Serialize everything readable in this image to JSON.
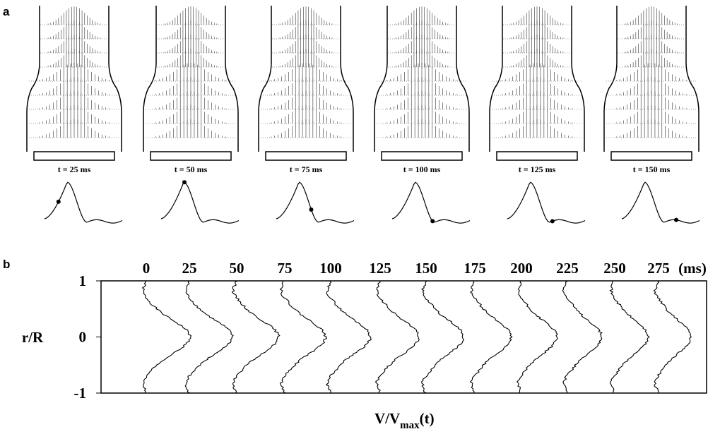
{
  "panel_a": {
    "label": "a",
    "frames": [
      {
        "label": "t = 25 ms"
      },
      {
        "label": "t = 50 ms"
      },
      {
        "label": "t = 75 ms"
      },
      {
        "label": "t = 100 ms"
      },
      {
        "label": "t = 125 ms"
      },
      {
        "label": "t = 150 ms"
      }
    ]
  },
  "panel_b": {
    "label": "b",
    "times": [
      0,
      25,
      50,
      75,
      100,
      125,
      150,
      175,
      200,
      225,
      250,
      275
    ],
    "unit": "(ms)",
    "y_label": "r/R",
    "yticks": [
      1,
      0,
      -1
    ],
    "x_label": "V/V",
    "x_label_sub": "max",
    "x_label_suffix": "(t)"
  }
}
